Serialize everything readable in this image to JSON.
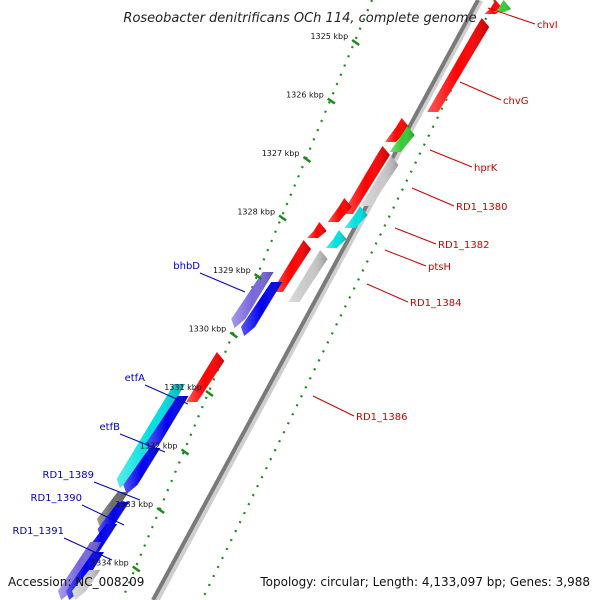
{
  "title": "Roseobacter denitrificans OCh 114, complete genome",
  "accession": "Accession: NC_008209",
  "topology": "Topology: circular; Length: 4,133,097 bp; Genes: 3,988",
  "ticks": [
    "1325 kbp",
    "1326 kbp",
    "1327 kbp",
    "1328 kbp",
    "1329 kbp",
    "1330 kbp",
    "1331 kbp",
    "1332 kbp",
    "1333 kbp",
    "1334 kbp"
  ],
  "colors": {
    "red": "#ff0000",
    "blue": "#0000ee",
    "cyan": "#00e0e0",
    "green": "#33cc33",
    "grey": "#c8c8c8",
    "darkgrey": "#6a6a6a",
    "purple": "#7766dd",
    "forward_label": "#cc0000",
    "reverse_label": "#0000bb",
    "tick_dots": "#1a8a1a"
  },
  "forward_labels": [
    "chvI",
    "chvG",
    "hprK",
    "RD1_1380",
    "RD1_1382",
    "ptsH",
    "RD1_1384",
    "RD1_1386"
  ],
  "reverse_labels": [
    "bhbD",
    "etfA",
    "etfB",
    "RD1_1389",
    "RD1_1390",
    "RD1_1391"
  ]
}
